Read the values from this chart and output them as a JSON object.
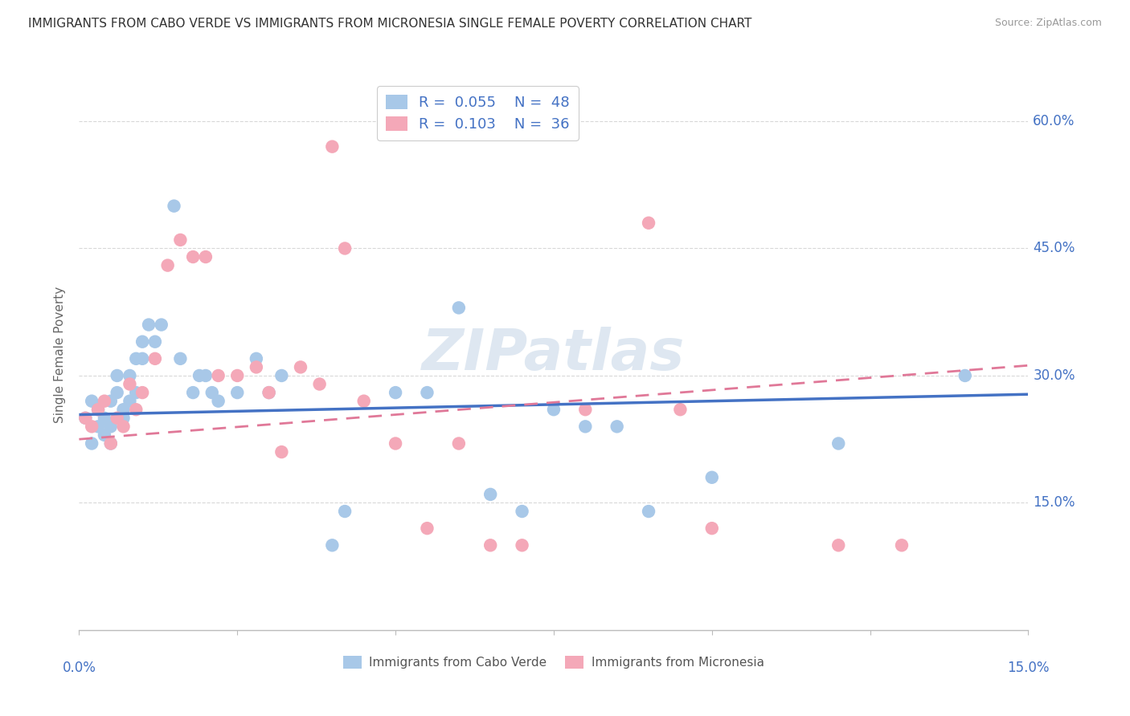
{
  "title": "IMMIGRANTS FROM CABO VERDE VS IMMIGRANTS FROM MICRONESIA SINGLE FEMALE POVERTY CORRELATION CHART",
  "source": "Source: ZipAtlas.com",
  "ylabel": "Single Female Poverty",
  "watermark": "ZIPatlas",
  "cabo_verde_R": "0.055",
  "cabo_verde_N": "48",
  "micronesia_R": "0.103",
  "micronesia_N": "36",
  "cabo_verde_color": "#a8c8e8",
  "micronesia_color": "#f4a8b8",
  "cabo_verde_line_color": "#4472c4",
  "micronesia_line_color": "#e07898",
  "background_color": "#ffffff",
  "grid_color": "#d8d8d8",
  "xlim": [
    0.0,
    0.15
  ],
  "ylim": [
    0.0,
    0.65
  ],
  "yticks": [
    0.15,
    0.3,
    0.45,
    0.6
  ],
  "ytick_labels": [
    "15.0%",
    "30.0%",
    "45.0%",
    "60.0%"
  ],
  "cabo_verde_x": [
    0.001,
    0.002,
    0.002,
    0.003,
    0.003,
    0.004,
    0.004,
    0.005,
    0.005,
    0.005,
    0.006,
    0.006,
    0.007,
    0.007,
    0.008,
    0.008,
    0.009,
    0.009,
    0.01,
    0.01,
    0.011,
    0.012,
    0.013,
    0.015,
    0.016,
    0.018,
    0.019,
    0.02,
    0.021,
    0.022,
    0.025,
    0.028,
    0.03,
    0.032,
    0.04,
    0.042,
    0.05,
    0.055,
    0.06,
    0.065,
    0.07,
    0.075,
    0.08,
    0.085,
    0.09,
    0.1,
    0.12,
    0.14
  ],
  "cabo_verde_y": [
    0.25,
    0.22,
    0.27,
    0.24,
    0.26,
    0.23,
    0.25,
    0.24,
    0.22,
    0.27,
    0.28,
    0.3,
    0.25,
    0.26,
    0.3,
    0.27,
    0.32,
    0.28,
    0.34,
    0.32,
    0.36,
    0.34,
    0.36,
    0.5,
    0.32,
    0.28,
    0.3,
    0.3,
    0.28,
    0.27,
    0.28,
    0.32,
    0.28,
    0.3,
    0.1,
    0.14,
    0.28,
    0.28,
    0.38,
    0.16,
    0.14,
    0.26,
    0.24,
    0.24,
    0.14,
    0.18,
    0.22,
    0.3
  ],
  "micronesia_x": [
    0.001,
    0.002,
    0.003,
    0.004,
    0.005,
    0.006,
    0.007,
    0.008,
    0.009,
    0.01,
    0.012,
    0.014,
    0.016,
    0.018,
    0.02,
    0.022,
    0.025,
    0.028,
    0.03,
    0.032,
    0.035,
    0.038,
    0.04,
    0.042,
    0.045,
    0.05,
    0.055,
    0.06,
    0.065,
    0.07,
    0.08,
    0.09,
    0.095,
    0.1,
    0.12,
    0.13
  ],
  "micronesia_y": [
    0.25,
    0.24,
    0.26,
    0.27,
    0.22,
    0.25,
    0.24,
    0.29,
    0.26,
    0.28,
    0.32,
    0.43,
    0.46,
    0.44,
    0.44,
    0.3,
    0.3,
    0.31,
    0.28,
    0.21,
    0.31,
    0.29,
    0.57,
    0.45,
    0.27,
    0.22,
    0.12,
    0.22,
    0.1,
    0.1,
    0.26,
    0.48,
    0.26,
    0.12,
    0.1,
    0.1
  ]
}
